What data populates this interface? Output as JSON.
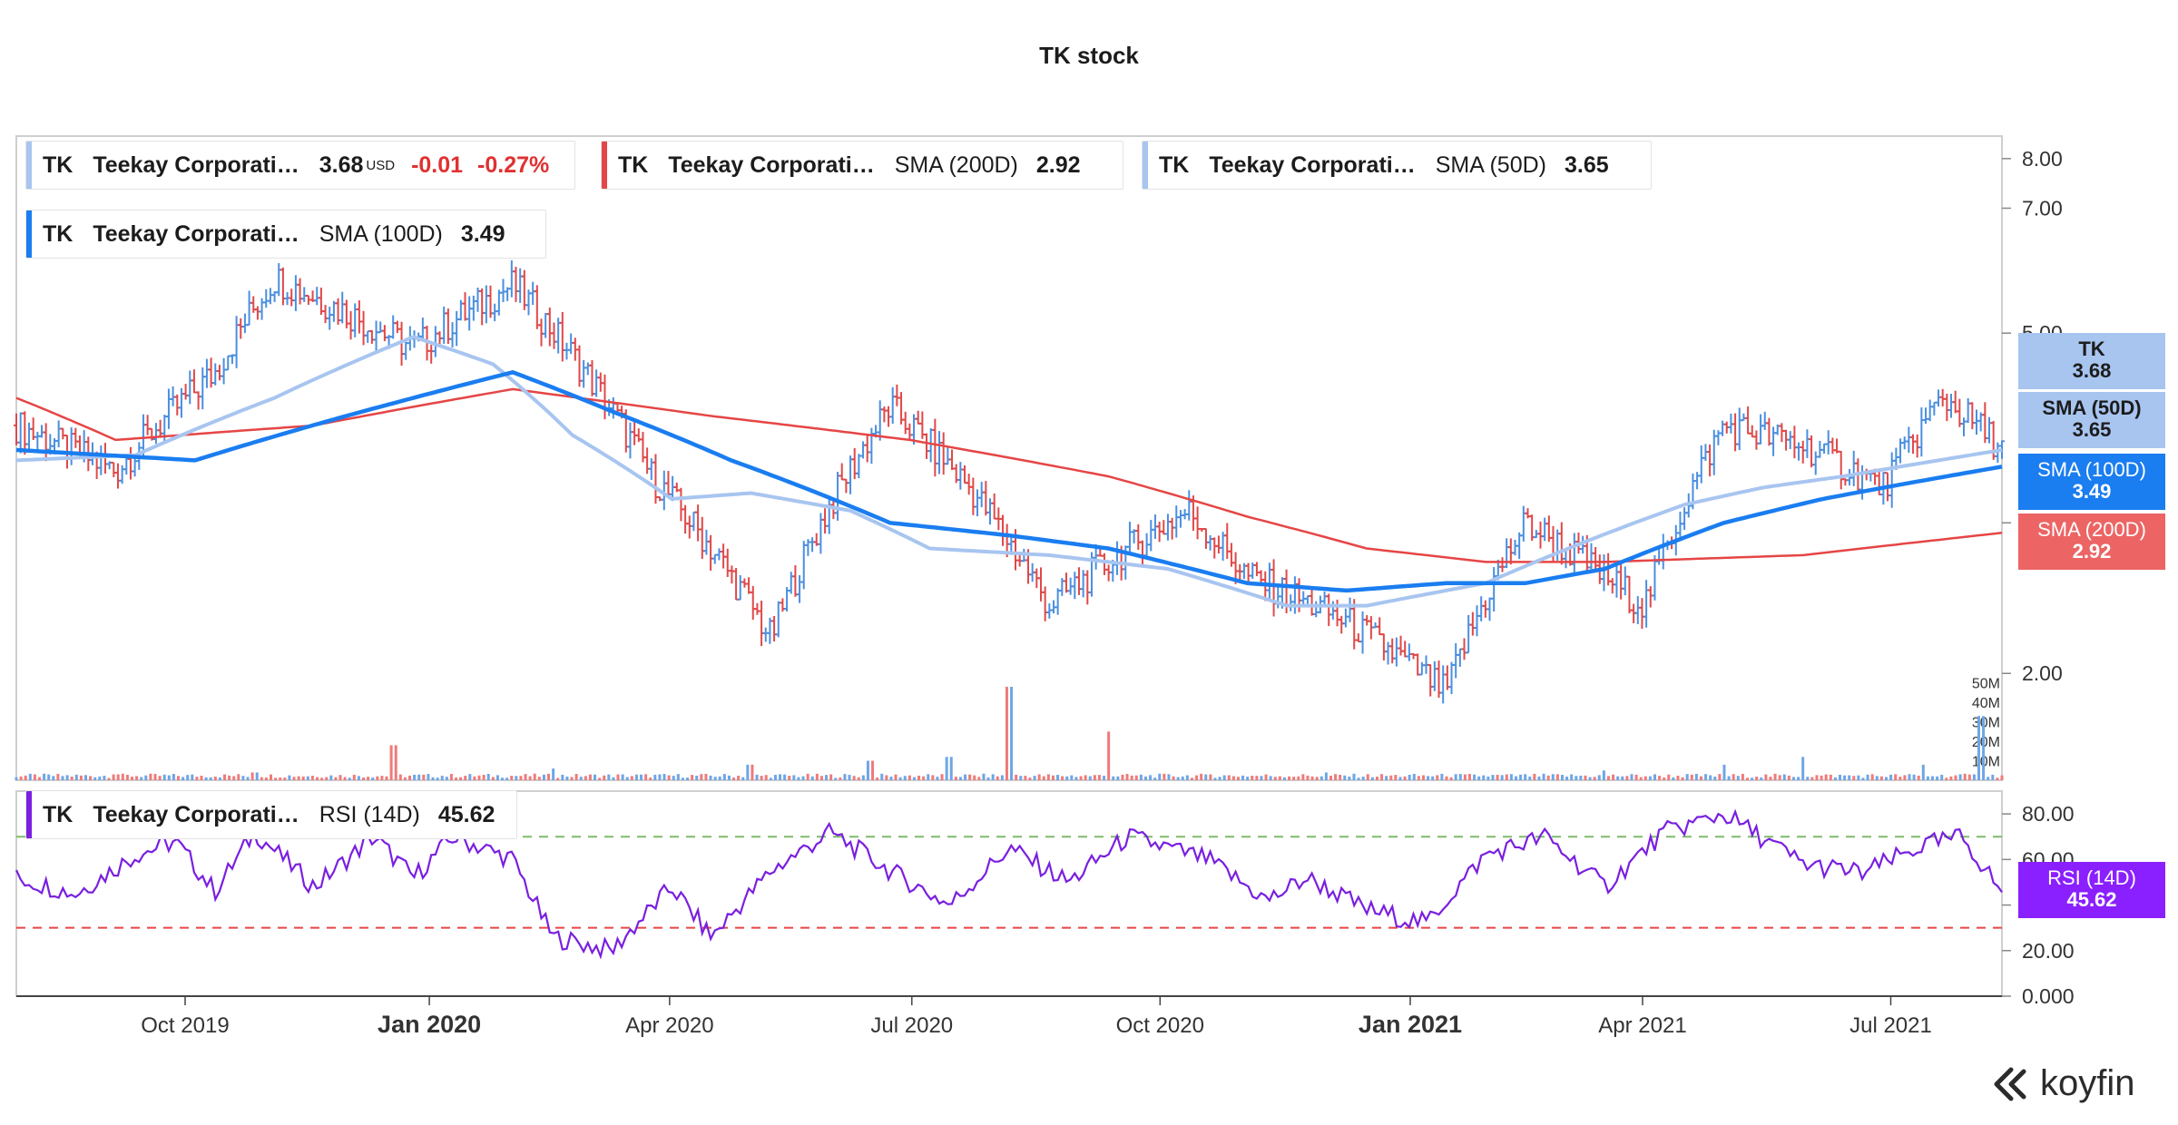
{
  "title": "TK stock",
  "legend_main": {
    "ticker": "TK",
    "name": "Teekay Corporati…",
    "value": "3.68",
    "unit": "USD",
    "change": "-0.01",
    "change_pct": "-0.27%",
    "color": "#a8c5f0"
  },
  "legend_sma200": {
    "ticker": "TK",
    "name": "Teekay Corporati…",
    "indicator": "SMA (200D)",
    "value": "2.92",
    "color": "#e64545"
  },
  "legend_sma50": {
    "ticker": "TK",
    "name": "Teekay Corporati…",
    "indicator": "SMA (50D)",
    "value": "3.65",
    "color": "#a8c5f0"
  },
  "legend_sma100": {
    "ticker": "TK",
    "name": "Teekay Corporati…",
    "indicator": "SMA (100D)",
    "value": "3.49",
    "color": "#1a7df0"
  },
  "legend_rsi": {
    "ticker": "TK",
    "name": "Teekay Corporati…",
    "indicator": "RSI (14D)",
    "value": "45.62",
    "color": "#7a1fe0"
  },
  "tags": {
    "tk": {
      "label": "TK",
      "value": "3.68",
      "bg": "#a8c5f0",
      "fg": "#1c1c1c"
    },
    "sma50": {
      "label": "SMA (50D)",
      "value": "3.65",
      "bg": "#a8c5f0",
      "fg": "#1c1c1c"
    },
    "sma100": {
      "label": "SMA (100D)",
      "value": "3.49",
      "bg": "#1a7df0",
      "fg": "#ffffff"
    },
    "sma200": {
      "label": "SMA (200D)",
      "value": "2.92",
      "bg": "#ec6464",
      "fg": "#ffffff"
    },
    "rsi": {
      "label": "RSI (14D)",
      "value": "45.62",
      "bg": "#8a1fff",
      "fg": "#ffffff"
    }
  },
  "logo_text": "koyfin",
  "chart_data": {
    "type": "line",
    "title": "TK stock",
    "x_ticks": [
      "Oct 2019",
      "Jan 2020",
      "Apr 2020",
      "Jul 2020",
      "Oct 2020",
      "Jan 2021",
      "Apr 2021",
      "Jul 2021"
    ],
    "x_ticks_bold": [
      "Jan 2020",
      "Jan 2021"
    ],
    "price_axis": {
      "scale": "log",
      "ticks": [
        "8.00",
        "7.00",
        "5.00",
        "3.00",
        "2.00"
      ],
      "ylim": [
        1.5,
        8.5
      ]
    },
    "volume_axis": {
      "ticks": [
        "50M",
        "40M",
        "30M",
        "20M",
        "10M"
      ],
      "ylim": [
        0,
        55
      ]
    },
    "rsi_axis": {
      "ticks": [
        "80.00",
        "60.00",
        "40.00",
        "20.00",
        "0.000"
      ],
      "ylim": [
        0,
        90
      ],
      "overbought": 70,
      "oversold": 30
    },
    "series": [
      {
        "name": "TK",
        "type": "ohlc",
        "color": "#a8c5f0",
        "x": [
          0.0,
          0.05,
          0.1,
          0.13,
          0.2,
          0.25,
          0.32,
          0.38,
          0.44,
          0.48,
          0.52,
          0.59,
          0.62,
          0.67,
          0.72,
          0.76,
          0.82,
          0.86,
          0.9,
          0.94,
          0.97,
          1.0
        ],
        "values": [
          3.9,
          3.45,
          4.5,
          5.8,
          4.8,
          5.7,
          3.4,
          2.2,
          4.1,
          3.3,
          2.4,
          3.1,
          2.6,
          2.3,
          1.9,
          3.0,
          2.4,
          3.9,
          3.7,
          3.3,
          4.2,
          3.68
        ]
      },
      {
        "name": "SMA (50D)",
        "color": "#a8c5f0",
        "x": [
          0.0,
          0.06,
          0.13,
          0.2,
          0.24,
          0.28,
          0.33,
          0.37,
          0.42,
          0.46,
          0.52,
          0.58,
          0.64,
          0.68,
          0.74,
          0.79,
          0.84,
          0.88,
          0.92,
          1.0
        ],
        "values": [
          3.55,
          3.6,
          4.2,
          4.95,
          4.6,
          3.8,
          3.2,
          3.25,
          3.1,
          2.8,
          2.75,
          2.65,
          2.4,
          2.4,
          2.55,
          2.85,
          3.15,
          3.3,
          3.4,
          3.65
        ]
      },
      {
        "name": "SMA (100D)",
        "color": "#1a7df0",
        "x": [
          0.0,
          0.09,
          0.2,
          0.25,
          0.3,
          0.36,
          0.44,
          0.5,
          0.55,
          0.62,
          0.67,
          0.72,
          0.76,
          0.8,
          0.86,
          0.91,
          1.0
        ],
        "values": [
          3.65,
          3.55,
          4.2,
          4.5,
          4.05,
          3.55,
          3.0,
          2.9,
          2.8,
          2.55,
          2.5,
          2.55,
          2.55,
          2.65,
          3.0,
          3.2,
          3.49
        ]
      },
      {
        "name": "SMA (200D)",
        "color": "#e64545",
        "x": [
          0.0,
          0.05,
          0.15,
          0.25,
          0.35,
          0.45,
          0.55,
          0.62,
          0.68,
          0.74,
          0.8,
          0.9,
          1.0
        ],
        "values": [
          4.2,
          3.75,
          3.9,
          4.3,
          4.0,
          3.75,
          3.4,
          3.05,
          2.8,
          2.7,
          2.7,
          2.75,
          2.92
        ]
      },
      {
        "name": "RSI (14D)",
        "color": "#7a1fe0",
        "x": [
          0.0,
          0.03,
          0.06,
          0.08,
          0.1,
          0.12,
          0.15,
          0.18,
          0.2,
          0.22,
          0.25,
          0.27,
          0.3,
          0.33,
          0.35,
          0.38,
          0.41,
          0.44,
          0.47,
          0.5,
          0.53,
          0.56,
          0.6,
          0.63,
          0.65,
          0.68,
          0.71,
          0.74,
          0.77,
          0.8,
          0.83,
          0.86,
          0.9,
          0.93,
          0.96,
          0.98,
          1.0
        ],
        "values": [
          52,
          45,
          62,
          68,
          46,
          72,
          48,
          70,
          52,
          70,
          60,
          26,
          20,
          48,
          26,
          55,
          72,
          55,
          40,
          65,
          50,
          70,
          60,
          42,
          52,
          38,
          32,
          62,
          70,
          48,
          72,
          80,
          58,
          54,
          66,
          70,
          45.62
        ]
      },
      {
        "name": "Volume",
        "type": "bar",
        "x": [
          0.05,
          0.12,
          0.19,
          0.27,
          0.37,
          0.43,
          0.47,
          0.5,
          0.55,
          0.6,
          0.66,
          0.72,
          0.8,
          0.86,
          0.9,
          0.96,
          0.99
        ],
        "values": [
          3,
          4,
          18,
          6,
          8,
          10,
          12,
          48,
          25,
          3,
          4,
          2,
          5,
          8,
          12,
          8,
          33
        ]
      }
    ]
  }
}
